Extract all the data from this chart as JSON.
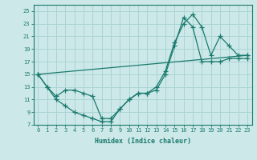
{
  "xlabel": "Humidex (Indice chaleur)",
  "ylabel": "",
  "bg_color": "#cce8e8",
  "grid_color": "#aad4d4",
  "line_color": "#1a7a6e",
  "xlim": [
    -0.5,
    23.5
  ],
  "ylim": [
    7,
    26
  ],
  "xticks": [
    0,
    1,
    2,
    3,
    4,
    5,
    6,
    7,
    8,
    9,
    10,
    11,
    12,
    13,
    14,
    15,
    16,
    17,
    18,
    19,
    20,
    21,
    22,
    23
  ],
  "yticks": [
    7,
    9,
    11,
    13,
    15,
    17,
    19,
    21,
    23,
    25
  ],
  "line1_x": [
    0,
    1,
    2,
    3,
    4,
    5,
    6,
    7,
    8,
    9,
    10,
    11,
    12,
    13,
    14,
    15,
    16,
    17,
    18,
    19,
    20,
    21,
    22,
    23
  ],
  "line1_y": [
    15,
    13,
    11,
    10,
    9,
    8.5,
    8,
    7.5,
    7.5,
    9.5,
    11,
    12,
    12,
    13,
    15.5,
    20,
    23,
    24.5,
    22.5,
    18,
    21,
    19.5,
    18,
    18
  ],
  "line2_x": [
    0,
    1,
    2,
    3,
    4,
    5,
    6,
    7,
    8,
    9,
    10,
    11,
    12,
    13,
    14,
    15,
    16,
    17,
    18,
    19,
    20,
    21,
    22,
    23
  ],
  "line2_y": [
    15,
    13,
    11.5,
    12.5,
    12.5,
    12,
    11.5,
    8,
    8,
    9.5,
    11,
    12,
    12,
    12.5,
    15,
    19.5,
    24,
    22.5,
    17,
    17,
    17,
    17.5,
    17.5,
    17.5
  ],
  "line3_x": [
    0,
    23
  ],
  "line3_y": [
    15,
    18
  ]
}
